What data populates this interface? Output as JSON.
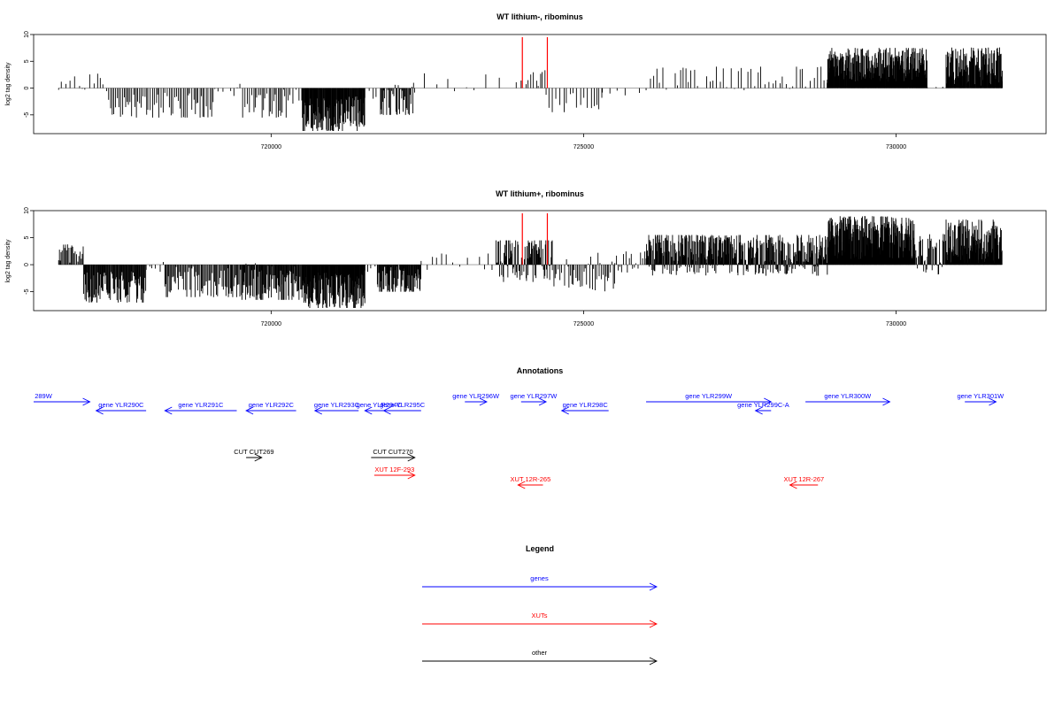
{
  "colors": {
    "genes": "#0000ff",
    "xuts": "#ff0000",
    "other": "#000000",
    "marker": "#ff0000",
    "bars": "#000000"
  },
  "chart_data": [
    {
      "type": "bar",
      "title": "WT lithium-, ribominus",
      "ylabel": "log2 tag density",
      "xlim": [
        716200,
        732400
      ],
      "ylim": [
        -8.5,
        10
      ],
      "xticks": [
        720000,
        725000,
        730000
      ],
      "yticks": [
        10,
        5,
        0,
        -5
      ],
      "markers": [
        724020,
        724420
      ],
      "density": [
        {
          "start": 716600,
          "end": 717400,
          "min": -1.0,
          "max": 3.0,
          "bias": 0.5,
          "step": 60
        },
        {
          "start": 717400,
          "end": 719100,
          "min": -5.5,
          "max": 0.3,
          "bias": -3.5,
          "step": 28
        },
        {
          "start": 719100,
          "end": 719500,
          "min": -1.5,
          "max": 0.3,
          "bias": -0.5,
          "step": 60
        },
        {
          "start": 719500,
          "end": 720300,
          "min": -5.5,
          "max": 3.0,
          "bias": -3.0,
          "step": 28
        },
        {
          "start": 720300,
          "end": 720500,
          "min": -3.0,
          "max": 0.3,
          "bias": -1.5,
          "step": 60
        },
        {
          "start": 720500,
          "end": 721500,
          "min": -8.0,
          "max": 0.0,
          "bias": -5.0,
          "step": 8
        },
        {
          "start": 721500,
          "end": 721750,
          "min": -2.5,
          "max": 0.5,
          "bias": -1.0,
          "step": 60
        },
        {
          "start": 721750,
          "end": 722300,
          "min": -5.0,
          "max": 4.0,
          "bias": -3.0,
          "step": 14
        },
        {
          "start": 722300,
          "end": 724000,
          "min": -1.0,
          "max": 3.0,
          "bias": 0.5,
          "step": 160
        },
        {
          "start": 724000,
          "end": 724400,
          "min": -0.5,
          "max": 3.5,
          "bias": 1.5,
          "step": 40
        },
        {
          "start": 724400,
          "end": 725300,
          "min": -4.5,
          "max": 1.5,
          "bias": -2.0,
          "step": 50
        },
        {
          "start": 725300,
          "end": 726000,
          "min": -1.5,
          "max": 0.5,
          "bias": -0.5,
          "step": 120
        },
        {
          "start": 726000,
          "end": 728900,
          "min": -1.5,
          "max": 4.0,
          "bias": 1.8,
          "step": 55
        },
        {
          "start": 728900,
          "end": 730500,
          "min": 0.0,
          "max": 7.5,
          "bias": 4.5,
          "step": 6
        },
        {
          "start": 730500,
          "end": 730800,
          "min": 0.0,
          "max": 0.5,
          "bias": 0.2,
          "step": 120
        },
        {
          "start": 730800,
          "end": 731700,
          "min": 0.0,
          "max": 8.0,
          "bias": 4.0,
          "step": 7
        }
      ]
    },
    {
      "type": "bar",
      "title": "WT lithium+, ribominus",
      "ylabel": "log2 tag density",
      "xlim": [
        716200,
        732400
      ],
      "ylim": [
        -8.5,
        10
      ],
      "xticks": [
        720000,
        725000,
        730000
      ],
      "yticks": [
        10,
        5,
        0,
        -5
      ],
      "markers": [
        724020,
        724420
      ],
      "density": [
        {
          "start": 716600,
          "end": 717000,
          "min": 0.0,
          "max": 4.0,
          "bias": 2.0,
          "step": 18
        },
        {
          "start": 717000,
          "end": 718000,
          "min": -7.0,
          "max": 0.5,
          "bias": -4.5,
          "step": 10
        },
        {
          "start": 718000,
          "end": 718300,
          "min": -2.0,
          "max": 0.5,
          "bias": -0.5,
          "step": 50
        },
        {
          "start": 718300,
          "end": 719500,
          "min": -6.0,
          "max": 1.5,
          "bias": -3.5,
          "step": 16
        },
        {
          "start": 719500,
          "end": 720500,
          "min": -6.5,
          "max": 3.0,
          "bias": -4.0,
          "step": 10
        },
        {
          "start": 720500,
          "end": 721500,
          "min": -8.0,
          "max": 0.0,
          "bias": -5.0,
          "step": 7
        },
        {
          "start": 721500,
          "end": 721700,
          "min": -1.5,
          "max": 0.5,
          "bias": -0.5,
          "step": 50
        },
        {
          "start": 721700,
          "end": 722400,
          "min": -5.0,
          "max": 2.0,
          "bias": -3.0,
          "step": 9
        },
        {
          "start": 722400,
          "end": 723600,
          "min": -1.0,
          "max": 2.5,
          "bias": 0.5,
          "step": 90
        },
        {
          "start": 723600,
          "end": 724500,
          "min": -6.0,
          "max": 4.5,
          "bias": 1.5,
          "step": 9
        },
        {
          "start": 724500,
          "end": 725500,
          "min": -5.0,
          "max": 3.0,
          "bias": -1.0,
          "step": 22
        },
        {
          "start": 725500,
          "end": 726000,
          "min": -2.0,
          "max": 2.5,
          "bias": 0.5,
          "step": 30
        },
        {
          "start": 726000,
          "end": 728900,
          "min": -3.5,
          "max": 5.5,
          "bias": 2.0,
          "step": 7
        },
        {
          "start": 728900,
          "end": 730300,
          "min": 0.0,
          "max": 9.0,
          "bias": 5.0,
          "step": 5
        },
        {
          "start": 730300,
          "end": 730800,
          "min": -3.0,
          "max": 6.0,
          "bias": 2.0,
          "step": 12
        },
        {
          "start": 730800,
          "end": 731700,
          "min": 0.0,
          "max": 8.5,
          "bias": 4.0,
          "step": 6
        }
      ]
    }
  ],
  "annotations": {
    "title": "Annotations",
    "features": [
      {
        "label": "289W",
        "start": 716200,
        "end": 717100,
        "strand": "+",
        "row": 0,
        "type": "gene"
      },
      {
        "label": "gene YLR290C",
        "start": 717200,
        "end": 718000,
        "strand": "-",
        "row": 1,
        "type": "gene"
      },
      {
        "label": "gene YLR291C",
        "start": 718300,
        "end": 719450,
        "strand": "-",
        "row": 1,
        "type": "gene"
      },
      {
        "label": "gene YLR292C",
        "start": 719600,
        "end": 720400,
        "strand": "-",
        "row": 1,
        "type": "gene"
      },
      {
        "label": "gene YLR293C",
        "start": 720700,
        "end": 721400,
        "strand": "-",
        "row": 1,
        "type": "gene"
      },
      {
        "label": "gene YLR294C",
        "start": 721500,
        "end": 721950,
        "strand": "-",
        "row": 1,
        "type": "gene"
      },
      {
        "label": "gene YLR295C",
        "start": 721800,
        "end": 722400,
        "strand": "-",
        "row": 1,
        "type": "gene"
      },
      {
        "label": "gene YLR296W",
        "start": 723100,
        "end": 723450,
        "strand": "+",
        "row": 0,
        "type": "gene"
      },
      {
        "label": "gene YLR297W",
        "start": 724000,
        "end": 724400,
        "strand": "+",
        "row": 0,
        "type": "gene"
      },
      {
        "label": "gene YLR298C",
        "start": 724650,
        "end": 725400,
        "strand": "-",
        "row": 1,
        "type": "gene"
      },
      {
        "label": "gene YLR299W",
        "start": 726000,
        "end": 728000,
        "strand": "+",
        "row": 0,
        "type": "gene"
      },
      {
        "label": "gene YLR299C-A",
        "start": 727750,
        "end": 728000,
        "strand": "-",
        "row": 1,
        "type": "gene"
      },
      {
        "label": "gene YLR300W",
        "start": 728550,
        "end": 729900,
        "strand": "+",
        "row": 0,
        "type": "gene"
      },
      {
        "label": "gene YLR301W",
        "start": 731100,
        "end": 731600,
        "strand": "+",
        "row": 0,
        "type": "gene"
      },
      {
        "label": "CUT CUT269",
        "start": 719600,
        "end": 719850,
        "strand": "+",
        "row": 2,
        "type": "other"
      },
      {
        "label": "CUT CUT270",
        "start": 721600,
        "end": 722300,
        "strand": "+",
        "row": 2,
        "type": "other"
      },
      {
        "label": "XUT 12F-293",
        "start": 721650,
        "end": 722300,
        "strand": "+",
        "row": 3,
        "type": "xut"
      },
      {
        "label": "XUT 12R-265",
        "start": 723950,
        "end": 724350,
        "strand": "-",
        "row": 4,
        "type": "xut"
      },
      {
        "label": "XUT 12R-267",
        "start": 728300,
        "end": 728750,
        "strand": "-",
        "row": 4,
        "type": "xut"
      }
    ]
  },
  "legend": {
    "title": "Legend",
    "items": [
      {
        "label": "genes",
        "type": "gene"
      },
      {
        "label": "XUTs",
        "type": "xut"
      },
      {
        "label": "other",
        "type": "other"
      }
    ]
  }
}
